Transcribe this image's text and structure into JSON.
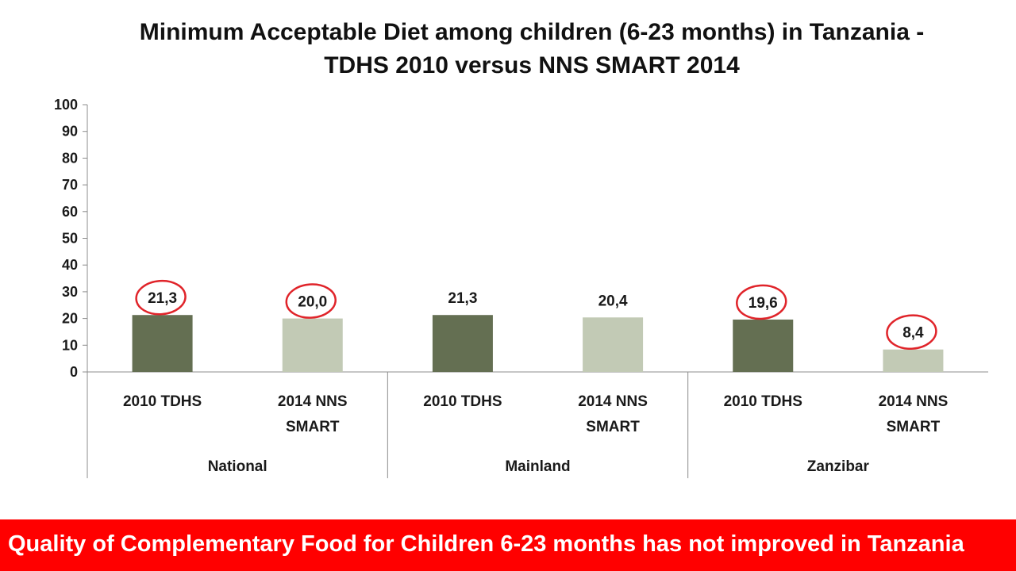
{
  "chart_data": {
    "type": "bar",
    "title_lines": [
      "Minimum Acceptable Diet among children (6-23 months) in Tanzania -",
      "TDHS 2010 versus NNS SMART 2014"
    ],
    "ylim": [
      0,
      100
    ],
    "yticks": [
      "0",
      "10",
      "20",
      "30",
      "40",
      "50",
      "60",
      "70",
      "80",
      "90",
      "100"
    ],
    "groups": [
      {
        "label": "National",
        "bars": [
          {
            "label": [
              "2010 TDHS"
            ],
            "value": 21.3,
            "display": "21,3",
            "survey": "tdhs",
            "circled": true
          },
          {
            "label": [
              "2014 NNS",
              "SMART"
            ],
            "value": 20.0,
            "display": "20,0",
            "survey": "smart",
            "circled": true
          }
        ]
      },
      {
        "label": "Mainland",
        "bars": [
          {
            "label": [
              "2010 TDHS"
            ],
            "value": 21.3,
            "display": "21,3",
            "survey": "tdhs",
            "circled": false
          },
          {
            "label": [
              "2014 NNS",
              "SMART"
            ],
            "value": 20.4,
            "display": "20,4",
            "survey": "smart",
            "circled": false
          }
        ]
      },
      {
        "label": "Zanzibar",
        "bars": [
          {
            "label": [
              "2010 TDHS"
            ],
            "value": 19.6,
            "display": "19,6",
            "survey": "tdhs",
            "circled": true
          },
          {
            "label": [
              "2014 NNS",
              "SMART"
            ],
            "value": 8.4,
            "display": "8,4",
            "survey": "smart",
            "circled": true
          }
        ]
      }
    ],
    "colors": {
      "tdhs": "#646f52",
      "smart": "#c2cab5",
      "circle": "#e0242a",
      "axis": "#8c8c8c"
    },
    "grid": false,
    "legend": "none"
  },
  "banner": {
    "text": "Quality of Complementary Food for Children 6-23 months has not improved in Tanzania",
    "color": "#ff0000"
  }
}
